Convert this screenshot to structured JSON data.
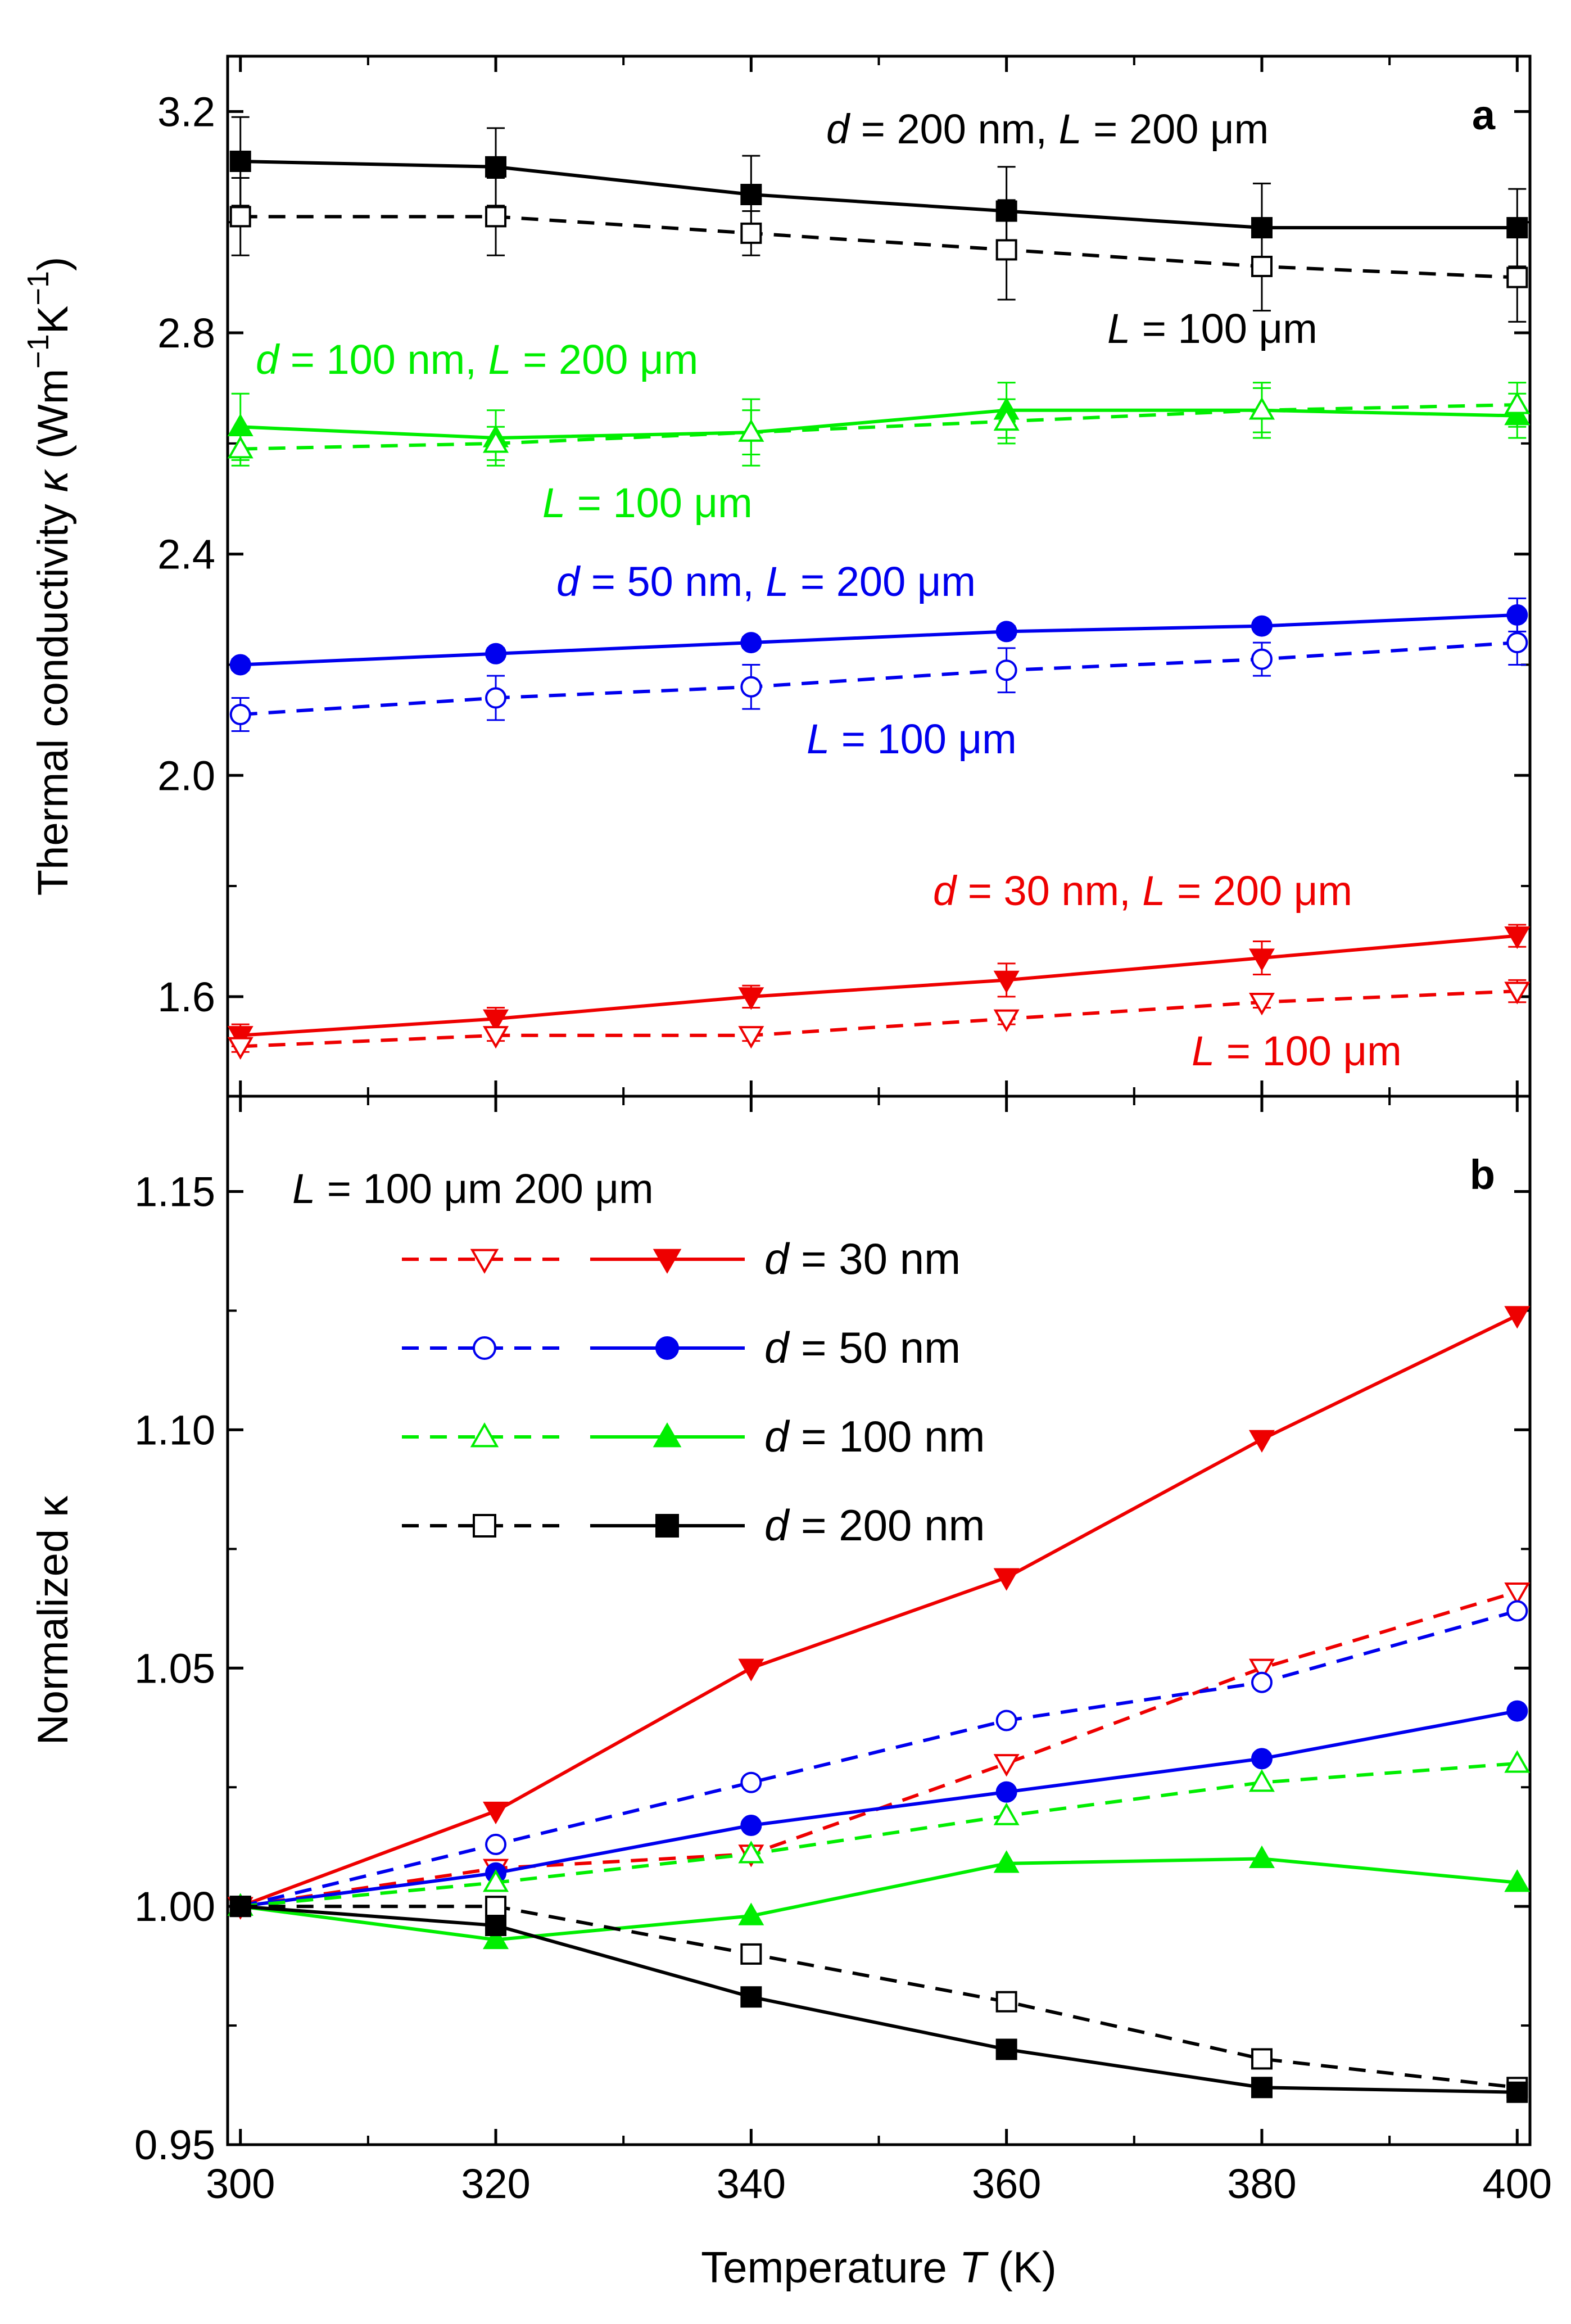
{
  "chart_data": [
    {
      "panel": "a",
      "type": "line",
      "panel_label": "a",
      "xlabel": "Temperature T (K)",
      "ylabel": "Thermal conductivity κ (Wm⁻¹K⁻¹)",
      "ylabel_text": "Thermal conductivity ",
      "ylabel_symbol": "κ",
      "ylabel_unit_open": " (Wm",
      "ylabel_sup1": "−1",
      "ylabel_unit_mid": "K",
      "ylabel_sup2": "−1",
      "ylabel_close": ")",
      "x": [
        300,
        320,
        340,
        360,
        380,
        400
      ],
      "xlim": [
        299,
        401
      ],
      "ylim": [
        1.42,
        3.3
      ],
      "yticks": [
        1.6,
        2.0,
        2.4,
        2.8,
        3.2
      ],
      "ytick_labels": [
        "1.6",
        "2.0",
        "2.4",
        "2.8",
        "3.2"
      ],
      "series": [
        {
          "name": "d = 200 nm, L = 200 μm",
          "color": "#000000",
          "marker": "square",
          "filled": true,
          "dashed": false,
          "values": [
            3.11,
            3.1,
            3.05,
            3.02,
            2.99,
            2.99
          ],
          "errors": [
            0.08,
            0.07,
            0.07,
            0.08,
            0.08,
            0.07
          ]
        },
        {
          "name": "d = 200 nm, L = 100 μm",
          "color": "#000000",
          "marker": "square",
          "filled": false,
          "dashed": true,
          "values": [
            3.01,
            3.01,
            2.98,
            2.95,
            2.92,
            2.9
          ],
          "errors": [
            0.07,
            0.07,
            0.04,
            0.09,
            0.08,
            0.08
          ]
        },
        {
          "name": "d = 100 nm, L = 200 μm",
          "color": "#00ee00",
          "marker": "triangle-up",
          "filled": true,
          "dashed": false,
          "values": [
            2.63,
            2.61,
            2.62,
            2.66,
            2.66,
            2.65
          ],
          "errors": [
            0.06,
            0.05,
            0.06,
            0.05,
            0.05,
            0.04
          ]
        },
        {
          "name": "d = 100 nm, L = 100 μm",
          "color": "#00ee00",
          "marker": "triangle-up",
          "filled": false,
          "dashed": true,
          "values": [
            2.59,
            2.6,
            2.62,
            2.64,
            2.66,
            2.67
          ],
          "errors": [
            0.03,
            0.03,
            0.04,
            0.04,
            0.04,
            0.04
          ]
        },
        {
          "name": "d = 50 nm, L = 200 μm",
          "color": "#0000ee",
          "marker": "circle",
          "filled": true,
          "dashed": false,
          "values": [
            2.2,
            2.22,
            2.24,
            2.26,
            2.27,
            2.29
          ],
          "errors": [
            0.01,
            0.01,
            0.01,
            0.01,
            0.01,
            0.03
          ]
        },
        {
          "name": "d = 50 nm, L = 100 μm",
          "color": "#0000ee",
          "marker": "circle",
          "filled": false,
          "dashed": true,
          "values": [
            2.11,
            2.14,
            2.16,
            2.19,
            2.21,
            2.24
          ],
          "errors": [
            0.03,
            0.04,
            0.04,
            0.04,
            0.03,
            0.04
          ]
        },
        {
          "name": "d = 30 nm, L = 200 μm",
          "color": "#ee0000",
          "marker": "triangle-down",
          "filled": true,
          "dashed": false,
          "values": [
            1.53,
            1.56,
            1.6,
            1.63,
            1.67,
            1.71
          ],
          "errors": [
            0.02,
            0.02,
            0.02,
            0.03,
            0.03,
            0.02
          ]
        },
        {
          "name": "d = 30 nm, L = 100 μm",
          "color": "#ee0000",
          "marker": "triangle-down",
          "filled": false,
          "dashed": true,
          "values": [
            1.51,
            1.53,
            1.53,
            1.56,
            1.59,
            1.61
          ],
          "errors": [
            0.01,
            0.01,
            0.01,
            0.01,
            0.01,
            0.02
          ]
        }
      ],
      "annotations": [
        {
          "d": "d",
          "d_text": " = 200 nm, ",
          "L": "L",
          "rest": " = 200 μm",
          "color": "#000000"
        },
        {
          "d": "",
          "d_text": "",
          "L": "L",
          "rest": " = 100 μm",
          "color": "#000000"
        },
        {
          "d": "d",
          "d_text": " = 100 nm, ",
          "L": "L",
          "rest": " = 200 μm",
          "color": "#00ee00"
        },
        {
          "d": "",
          "d_text": "",
          "L": "L",
          "rest": " = 100 μm",
          "color": "#00ee00"
        },
        {
          "d": "d",
          "d_text": " = 50 nm, ",
          "L": "L",
          "rest": " = 200 μm",
          "color": "#0000ee"
        },
        {
          "d": "",
          "d_text": "",
          "L": "L",
          "rest": " = 100 μm",
          "color": "#0000ee"
        },
        {
          "d": "d",
          "d_text": " = 30 nm, ",
          "L": "L",
          "rest": " = 200 μm",
          "color": "#ee0000"
        },
        {
          "d": "",
          "d_text": "",
          "L": "L",
          "rest": " = 100 μm",
          "color": "#ee0000"
        }
      ]
    },
    {
      "panel": "b",
      "type": "line",
      "panel_label": "b",
      "xlabel": "Temperature T (K)",
      "ylabel": "Normalized κ",
      "x": [
        300,
        320,
        340,
        360,
        380,
        400
      ],
      "xlim": [
        299,
        401
      ],
      "ylim": [
        0.95,
        1.17
      ],
      "yticks": [
        0.95,
        1.0,
        1.05,
        1.1,
        1.15
      ],
      "ytick_labels": [
        "0.95",
        "1.00",
        "1.05",
        "1.10",
        "1.15"
      ],
      "series": [
        {
          "name": "d = 30 nm, L = 100 μm",
          "color": "#ee0000",
          "marker": "triangle-down",
          "filled": false,
          "dashed": true,
          "values": [
            1.0,
            1.008,
            1.011,
            1.03,
            1.05,
            1.066
          ]
        },
        {
          "name": "d = 30 nm, L = 200 μm",
          "color": "#ee0000",
          "marker": "triangle-down",
          "filled": true,
          "dashed": false,
          "values": [
            1.0,
            1.02,
            1.05,
            1.069,
            1.098,
            1.124
          ]
        },
        {
          "name": "d = 50 nm, L = 100 μm",
          "color": "#0000ee",
          "marker": "circle",
          "filled": false,
          "dashed": true,
          "values": [
            1.0,
            1.013,
            1.026,
            1.039,
            1.047,
            1.062
          ]
        },
        {
          "name": "d = 50 nm, L = 200 μm",
          "color": "#0000ee",
          "marker": "circle",
          "filled": true,
          "dashed": false,
          "values": [
            1.0,
            1.007,
            1.017,
            1.024,
            1.031,
            1.041
          ]
        },
        {
          "name": "d = 100 nm, L = 100 μm",
          "color": "#00ee00",
          "marker": "triangle-up",
          "filled": false,
          "dashed": true,
          "values": [
            1.0,
            1.005,
            1.011,
            1.019,
            1.026,
            1.03
          ]
        },
        {
          "name": "d = 100 nm, L = 200 μm",
          "color": "#00ee00",
          "marker": "triangle-up",
          "filled": true,
          "dashed": false,
          "values": [
            1.0,
            0.993,
            0.998,
            1.009,
            1.01,
            1.005
          ]
        },
        {
          "name": "d = 200 nm, L = 100 μm",
          "color": "#000000",
          "marker": "square",
          "filled": false,
          "dashed": true,
          "values": [
            1.0,
            1.0,
            0.99,
            0.98,
            0.968,
            0.962
          ]
        },
        {
          "name": "d = 200 nm, L = 200 μm",
          "color": "#000000",
          "marker": "square",
          "filled": true,
          "dashed": false,
          "values": [
            1.0,
            0.996,
            0.981,
            0.97,
            0.962,
            0.961
          ]
        }
      ],
      "legend": {
        "placement": "top-left",
        "header_L": "L",
        "header_100": " = 100 μm",
        "header_200": "200 μm",
        "rows": [
          {
            "d": "d",
            "label": " = 30 nm",
            "color": "#ee0000",
            "marker": "triangle-down"
          },
          {
            "d": "d",
            "label": " = 50 nm",
            "color": "#0000ee",
            "marker": "circle"
          },
          {
            "d": "d",
            "label": " = 100 nm",
            "color": "#00ee00",
            "marker": "triangle-up"
          },
          {
            "d": "d",
            "label": " = 200 nm",
            "color": "#000000",
            "marker": "square"
          }
        ]
      }
    }
  ],
  "x_axis": {
    "label_text": "Temperature ",
    "label_symbol": "T",
    "label_unit": " (K)",
    "ticks": [
      300,
      320,
      340,
      360,
      380,
      400
    ],
    "tick_labels": [
      "300",
      "320",
      "340",
      "360",
      "380",
      "400"
    ]
  }
}
